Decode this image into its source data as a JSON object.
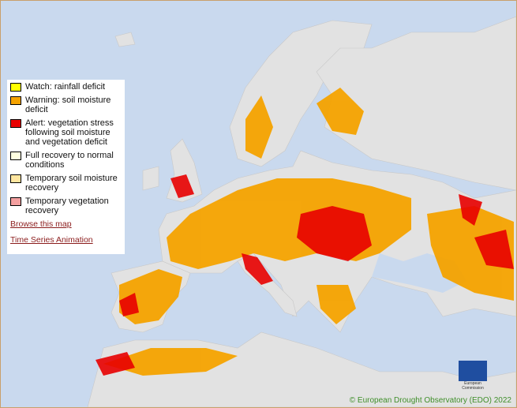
{
  "legend": {
    "items": [
      "Watch: rainfall deficit",
      "Warning: soil moisture deficit",
      "Alert: vegetation stress following soil moisture and vegetation deficit",
      "Full recovery to normal conditions",
      "Temporary soil moisture recovery",
      "Temporary vegetation recovery"
    ]
  },
  "links": [
    "Browse this map",
    "Time Series Animation"
  ],
  "logo": {
    "text": "European Commission"
  },
  "credit": "© European Drought Observatory (EDO) 2022"
}
